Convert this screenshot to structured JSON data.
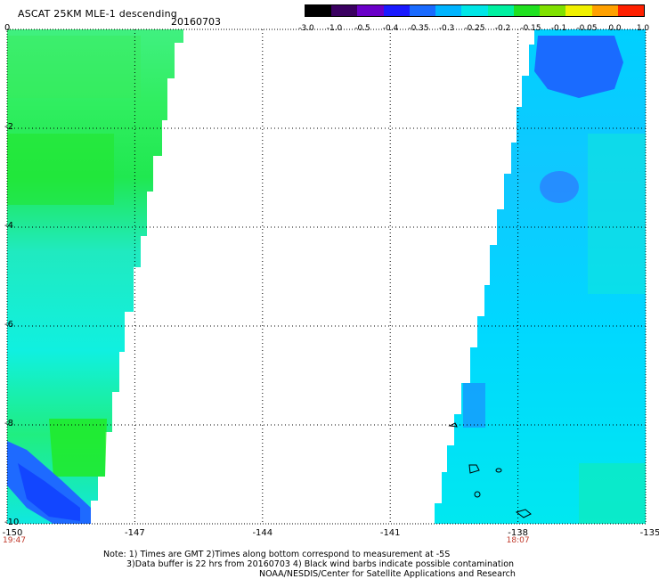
{
  "header": {
    "title": "ASCAT 25KM MLE-1 descending",
    "date": "20160703"
  },
  "colorbar": {
    "tick_labels": [
      "-3.0",
      "-1.0",
      "-0.5",
      "-0.4",
      "-0.35",
      "-0.3",
      "-0.25",
      "-0.2",
      "-0.15",
      "-0.1",
      "-0.05",
      "0.0",
      "1.0"
    ],
    "colors": [
      "#000000",
      "#3a0060",
      "#6a00c8",
      "#1a1aff",
      "#1a6bff",
      "#00b4ff",
      "#00e6e6",
      "#00f0a0",
      "#20e020",
      "#80e000",
      "#f0f000",
      "#ffa000",
      "#ff2000"
    ]
  },
  "axes": {
    "y_labels": [
      "0",
      "-2",
      "-4",
      "-6",
      "-8",
      "-10"
    ],
    "x_labels": [
      "-150",
      "-147",
      "-144",
      "-141",
      "-138",
      "-135"
    ],
    "x_times": [
      {
        "label": "19:47",
        "at": "-150"
      },
      {
        "label": "18:07",
        "at": "-138"
      }
    ]
  },
  "notes": {
    "line1": "Note: 1) Times are GMT 2)Times along bottom correspond to measurement at -5S",
    "line2": "3)Data buffer is 22 hrs from 20160703 4) Black wind barbs indicate possible contamination",
    "line3": "NOAA/NESDIS/Center for Satellite Applications and Research"
  },
  "map": {
    "lon_range": [
      -150,
      -135
    ],
    "lat_range": [
      -10,
      0
    ],
    "grid_lon": [
      -147,
      -144,
      -141,
      -138
    ],
    "grid_lat": [
      -2,
      -4,
      -6,
      -8
    ]
  }
}
